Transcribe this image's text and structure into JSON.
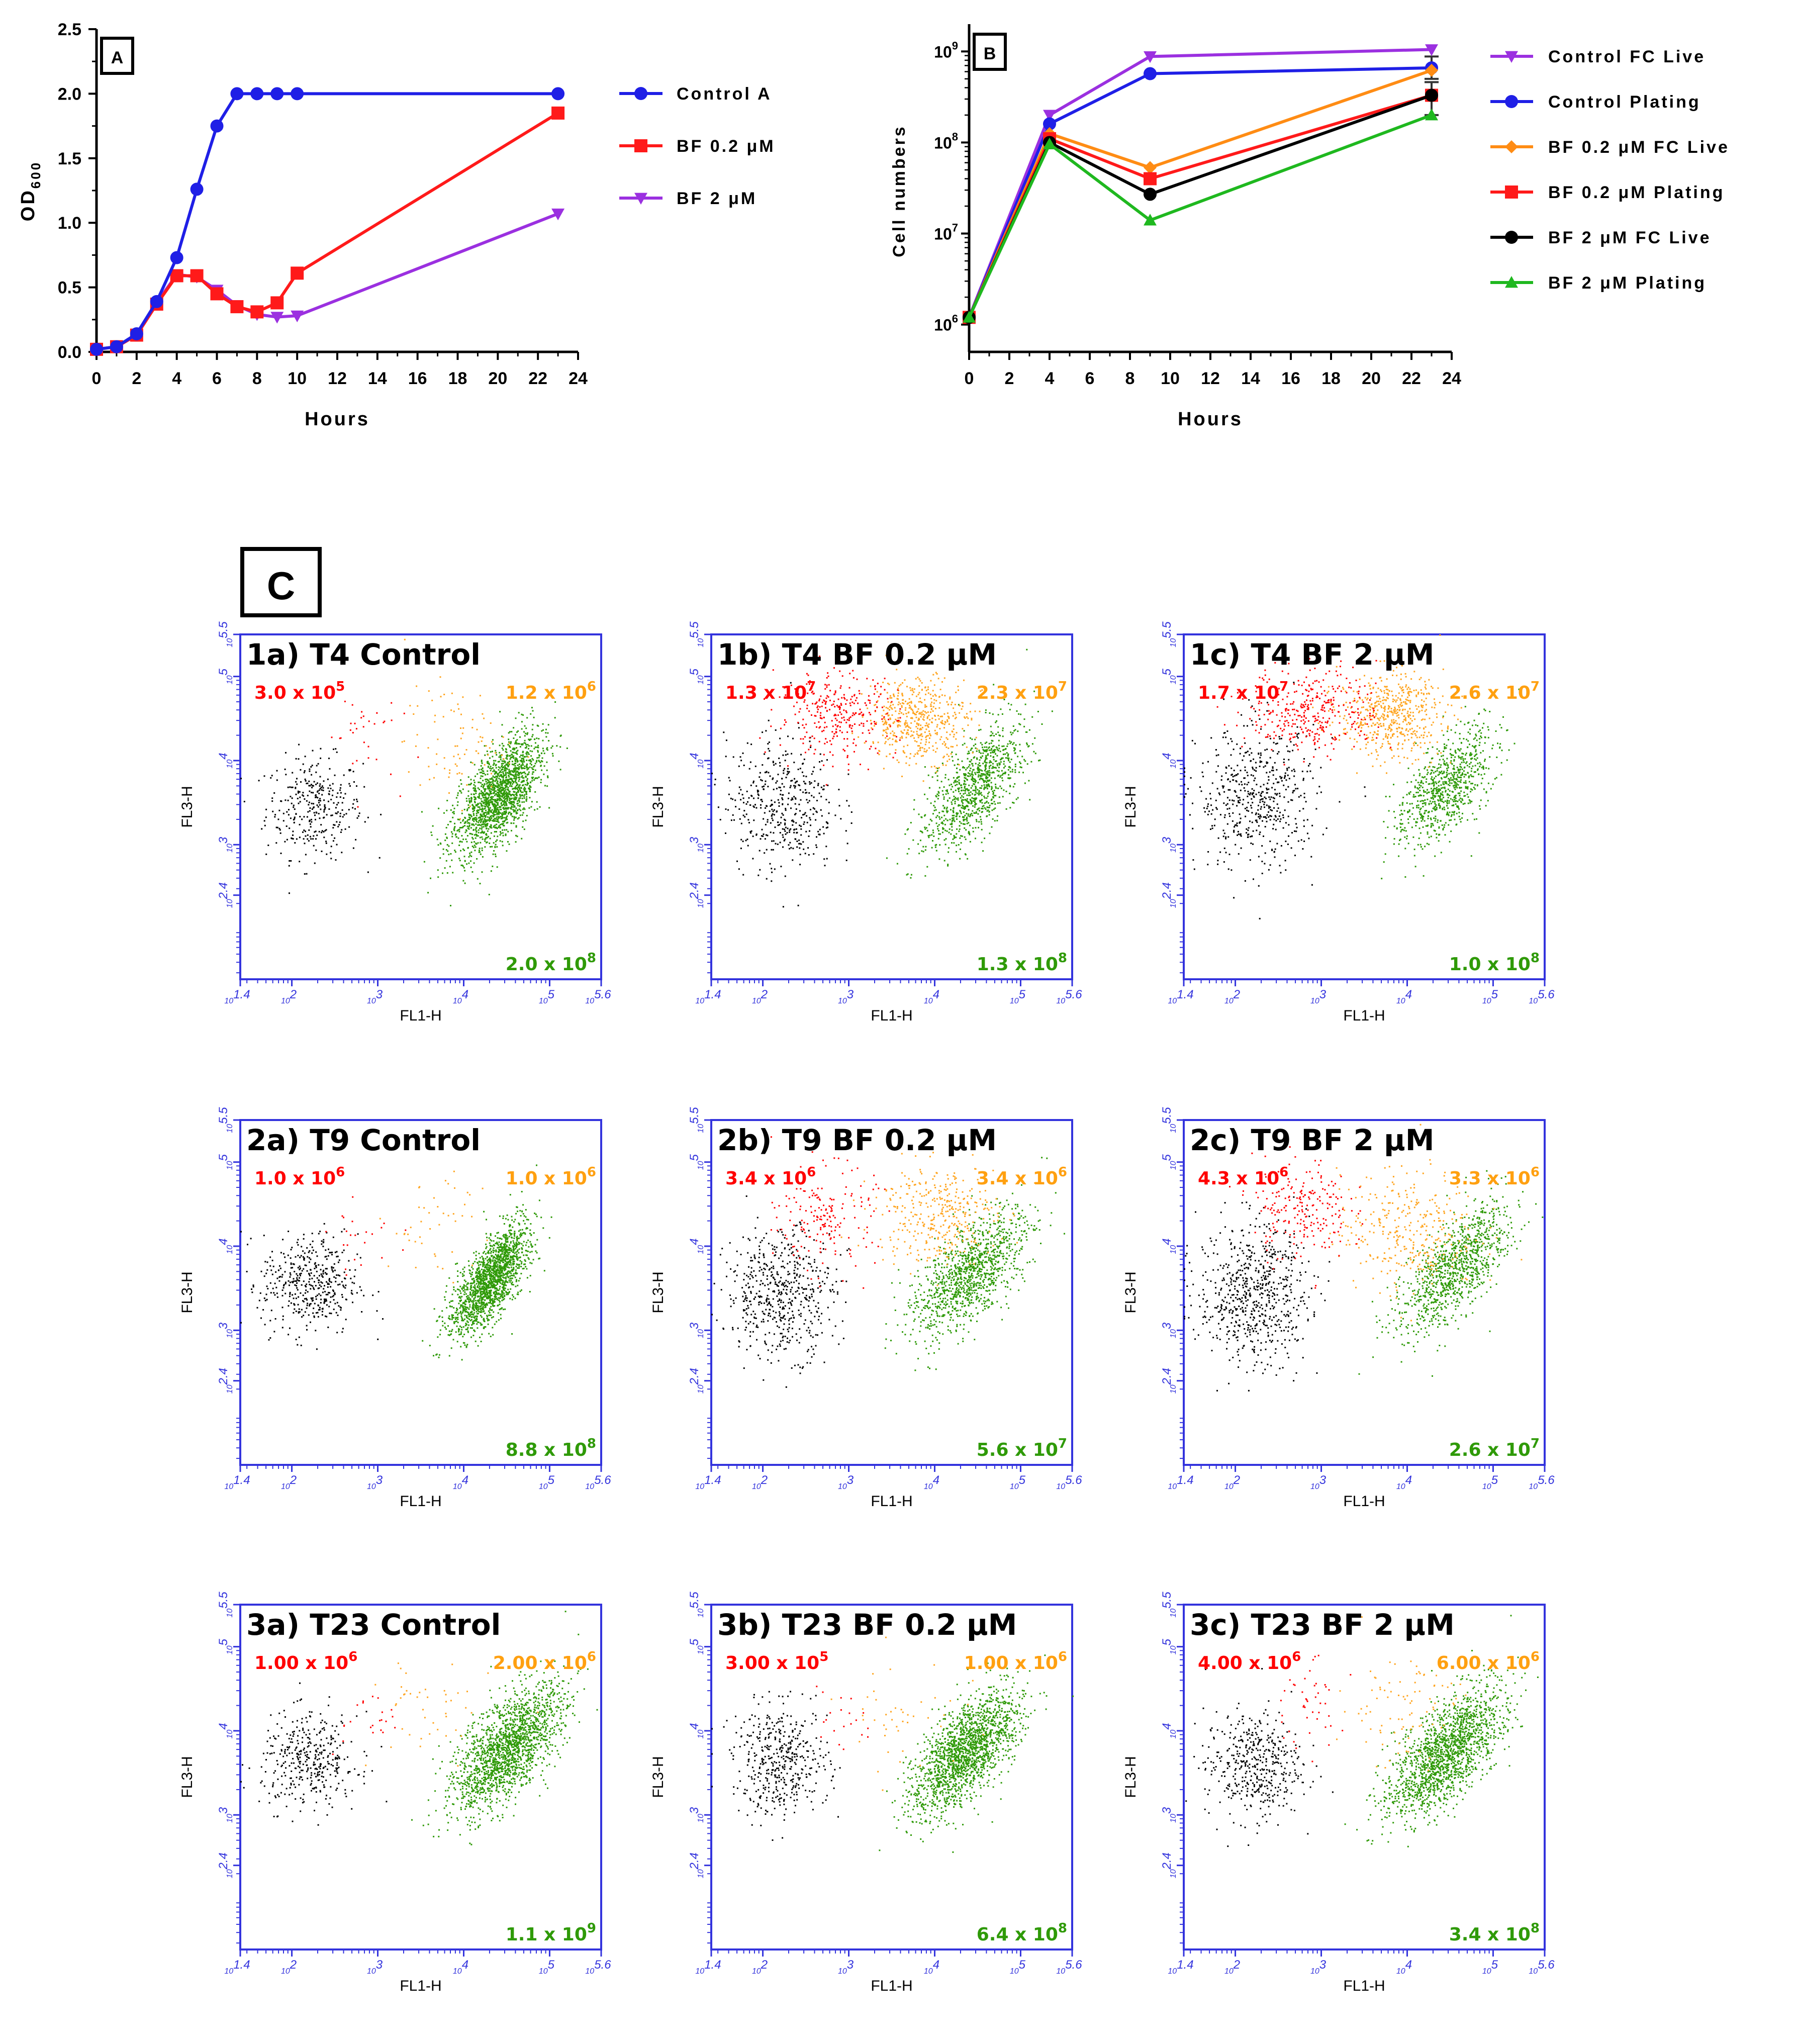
{
  "colors": {
    "blue": "#1f1fe6",
    "red": "#ff1a1a",
    "purple": "#9b30e0",
    "orange": "#ff8c14",
    "black": "#000000",
    "green": "#1fb81f",
    "scatter_green": "#2f9a08",
    "scatter_orange": "#ffa520",
    "scatter_red": "#ff0000",
    "axis_blue": "#3333dd"
  },
  "chart_data": [
    {
      "id": "A",
      "type": "line",
      "panel_label": "A",
      "xlabel": "Hours",
      "ylabel_main": "OD",
      "ylabel_sub": "600",
      "xlim": [
        0,
        24
      ],
      "ylim": [
        0,
        2.5
      ],
      "xticks": [
        "0",
        "2",
        "4",
        "6",
        "8",
        "10",
        "12",
        "14",
        "16",
        "18",
        "20",
        "22",
        "24"
      ],
      "yticks": [
        "0.0",
        "0.5",
        "1.0",
        "1.5",
        "2.0",
        "2.5"
      ],
      "legend_position": "right",
      "series": [
        {
          "name": "Control A",
          "color": "#1f1fe6",
          "marker": "circle",
          "x": [
            0,
            1,
            2,
            3,
            4,
            5,
            6,
            7,
            8,
            9,
            10,
            23
          ],
          "y": [
            0.02,
            0.04,
            0.14,
            0.39,
            0.73,
            1.26,
            1.75,
            2.0,
            2.0,
            2.0,
            2.0,
            2.0
          ]
        },
        {
          "name": "BF 0.2 μM",
          "color": "#ff1a1a",
          "marker": "square",
          "x": [
            0,
            1,
            2,
            3,
            4,
            5,
            6,
            7,
            8,
            9,
            10,
            23
          ],
          "y": [
            0.02,
            0.04,
            0.13,
            0.37,
            0.59,
            0.59,
            0.45,
            0.35,
            0.31,
            0.38,
            0.61,
            1.85
          ]
        },
        {
          "name": "BF 2 μM",
          "color": "#9b30e0",
          "marker": "tri-down",
          "x": [
            0,
            1,
            2,
            3,
            4,
            5,
            6,
            7,
            8,
            9,
            10,
            23
          ],
          "y": [
            0.02,
            0.04,
            0.13,
            0.38,
            0.6,
            0.58,
            0.48,
            0.36,
            0.29,
            0.27,
            0.28,
            1.07
          ]
        }
      ]
    },
    {
      "id": "B",
      "type": "line",
      "panel_label": "B",
      "xlabel": "Hours",
      "ylabel": "Cell numbers",
      "yscale": "log",
      "xlim": [
        0,
        24
      ],
      "ylim_exp": [
        5.7,
        9.3
      ],
      "xticks": [
        "0",
        "2",
        "4",
        "6",
        "8",
        "10",
        "12",
        "14",
        "16",
        "18",
        "20",
        "22",
        "24"
      ],
      "yticks": [
        {
          "base": "10",
          "exp": "6"
        },
        {
          "base": "10",
          "exp": "7"
        },
        {
          "base": "10",
          "exp": "8"
        },
        {
          "base": "10",
          "exp": "9"
        }
      ],
      "legend_position": "right",
      "series": [
        {
          "name": "Control FC Live",
          "color": "#9b30e0",
          "marker": "tri-down",
          "x": [
            0,
            4,
            9,
            23
          ],
          "y": [
            1200000.0,
            200000000.0,
            880000000.0,
            1050000000.0
          ]
        },
        {
          "name": "Control Plating",
          "color": "#1f1fe6",
          "marker": "circle",
          "x": [
            0,
            4,
            9,
            23
          ],
          "y": [
            1200000.0,
            160000000.0,
            570000000.0,
            660000000.0
          ]
        },
        {
          "name": "BF 0.2 μM FC Live",
          "color": "#ff8c14",
          "marker": "diamond",
          "x": [
            0,
            4,
            9,
            23
          ],
          "y": [
            1200000.0,
            125000000.0,
            53000000.0,
            620000000.0
          ]
        },
        {
          "name": "BF 0.2 μM Plating",
          "color": "#ff1a1a",
          "marker": "square",
          "x": [
            0,
            4,
            9,
            23
          ],
          "y": [
            1200000.0,
            110000000.0,
            40000000.0,
            330000000.0
          ]
        },
        {
          "name": "BF 2 μM FC Live",
          "color": "#000000",
          "marker": "circle",
          "x": [
            0,
            4,
            9,
            23
          ],
          "y": [
            1200000.0,
            100000000.0,
            27000000.0,
            330000000.0
          ]
        },
        {
          "name": "BF 2 μM Plating",
          "color": "#1fb81f",
          "marker": "triangle",
          "x": [
            0,
            4,
            9,
            23
          ],
          "y": [
            1200000.0,
            96000000.0,
            14000000.0,
            200000000.0
          ]
        }
      ]
    },
    {
      "id": "C",
      "type": "scatter",
      "panel_label": "C",
      "xlabel": "FL1-H",
      "ylabel": "FL3-H",
      "axis_range_log10": [
        1.4,
        5.6
      ],
      "xticks": [
        {
          "base": "10",
          "exp": "1.4"
        },
        {
          "base": "10",
          "exp": "2"
        },
        {
          "base": "10",
          "exp": "3"
        },
        {
          "base": "10",
          "exp": "4"
        },
        {
          "base": "10",
          "exp": "5"
        },
        {
          "base": "10",
          "exp": "5.6"
        }
      ],
      "yticks": [
        {
          "base": "10",
          "exp": "2.4"
        },
        {
          "base": "10",
          "exp": "3"
        },
        {
          "base": "10",
          "exp": "4"
        },
        {
          "base": "10",
          "exp": "5"
        },
        {
          "base": "10",
          "exp": "5.5"
        }
      ],
      "panels": [
        {
          "title": "1a) T4 Control",
          "red": {
            "base": "3.0 x 10",
            "exp": "5"
          },
          "orange": {
            "base": "1.2 x 10",
            "exp": "6"
          },
          "green": {
            "base": "2.0 x 10",
            "exp": "8"
          },
          "fractions": {
            "black": 0.15,
            "red": 0.015,
            "orange": 0.04,
            "green": 0.795
          }
        },
        {
          "title": "1b) T4  BF 0.2 μM",
          "red": {
            "base": "1.3 x 10",
            "exp": "7"
          },
          "orange": {
            "base": "2.3 x 10",
            "exp": "7"
          },
          "green": {
            "base": "1.3 x 10",
            "exp": "8"
          },
          "fractions": {
            "black": 0.2,
            "red": 0.14,
            "orange": 0.23,
            "green": 0.43
          }
        },
        {
          "title": "1c) T4  BF 2 μM",
          "red": {
            "base": "1.7 x 10",
            "exp": "7"
          },
          "orange": {
            "base": "2.6 x 10",
            "exp": "7"
          },
          "green": {
            "base": "1.0 x 10",
            "exp": "8"
          },
          "fractions": {
            "black": 0.24,
            "red": 0.16,
            "orange": 0.24,
            "green": 0.36
          }
        },
        {
          "title": "2a) T9 Control",
          "red": {
            "base": "1.0 x 10",
            "exp": "6"
          },
          "orange": {
            "base": "1.0 x 10",
            "exp": "6"
          },
          "green": {
            "base": "8.8 x 10",
            "exp": "8"
          },
          "fractions": {
            "black": 0.2,
            "red": 0.01,
            "orange": 0.02,
            "green": 0.77
          }
        },
        {
          "title": "2b) T9  BF 0.2 μM",
          "red": {
            "base": "3.4 x 10",
            "exp": "6"
          },
          "orange": {
            "base": "3.4 x 10",
            "exp": "6"
          },
          "green": {
            "base": "5.6 x 10",
            "exp": "7"
          },
          "fractions": {
            "black": 0.25,
            "red": 0.08,
            "orange": 0.16,
            "green": 0.51
          }
        },
        {
          "title": "2c) T9  BF 2 μM",
          "red": {
            "base": "4.3 x 10",
            "exp": "6"
          },
          "orange": {
            "base": "3.3 x 10",
            "exp": "6"
          },
          "green": {
            "base": "2.6 x 10",
            "exp": "7"
          },
          "fractions": {
            "black": 0.3,
            "red": 0.1,
            "orange": 0.15,
            "green": 0.45
          }
        },
        {
          "title": "3a) T23 Control",
          "red": {
            "base": "1.00 x 10",
            "exp": "6"
          },
          "orange": {
            "base": "2.00 x 10",
            "exp": "6"
          },
          "green": {
            "base": "1.1 x 10",
            "exp": "9"
          },
          "fractions": {
            "black": 0.17,
            "red": 0.01,
            "orange": 0.02,
            "green": 0.8
          }
        },
        {
          "title": "3b) T23  BF 0.2 μM",
          "red": {
            "base": "3.00 x 10",
            "exp": "5"
          },
          "orange": {
            "base": "1.00 x 10",
            "exp": "6"
          },
          "green": {
            "base": "6.4 x 10",
            "exp": "8"
          },
          "fractions": {
            "black": 0.2,
            "red": 0.005,
            "orange": 0.02,
            "green": 0.775
          }
        },
        {
          "title": "3c) T23  BF 2 μM",
          "red": {
            "base": "4.00 x 10",
            "exp": "6"
          },
          "orange": {
            "base": "6.00 x 10",
            "exp": "6"
          },
          "green": {
            "base": "3.4 x 10",
            "exp": "8"
          },
          "fractions": {
            "black": 0.2,
            "red": 0.02,
            "orange": 0.04,
            "green": 0.74
          }
        }
      ]
    }
  ]
}
